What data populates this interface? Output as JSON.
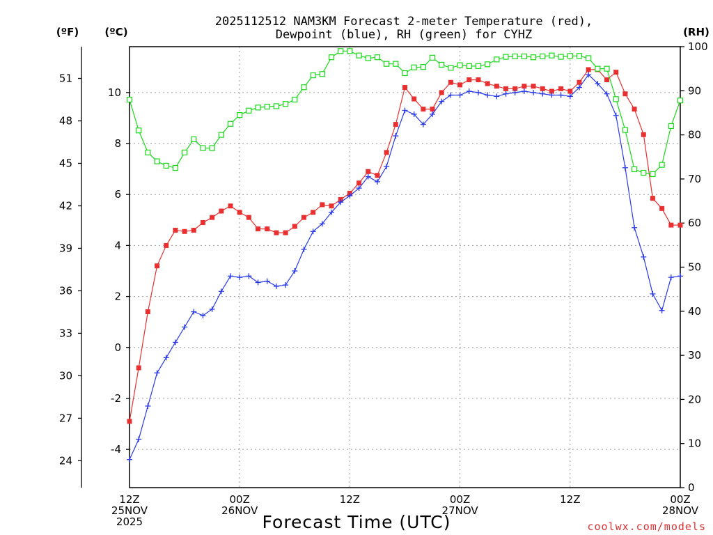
{
  "chart_data": {
    "type": "line",
    "title_line1": "2025112512 NAM3KM Forecast 2-meter Temperature (red),",
    "title_line2": "Dewpoint (blue), RH (green) for CYHZ",
    "xlabel": "Forecast Time (UTC)",
    "credit": "coolwx.com/models",
    "credit_color": "#e03030",
    "units": {
      "fahrenheit": "(ºF)",
      "celsius": "(ºC)",
      "rh": "(RH)"
    },
    "x_range": [
      0,
      60
    ],
    "x_ticks": [
      {
        "x": 0,
        "lines": [
          "12Z",
          "25NOV",
          "2025"
        ]
      },
      {
        "x": 12,
        "lines": [
          "00Z",
          "26NOV"
        ]
      },
      {
        "x": 24,
        "lines": [
          "12Z"
        ]
      },
      {
        "x": 36,
        "lines": [
          "00Z",
          "27NOV"
        ]
      },
      {
        "x": 48,
        "lines": [
          "12Z"
        ]
      },
      {
        "x": 60,
        "lines": [
          "00Z",
          "28NOV"
        ]
      }
    ],
    "celsius_range": [
      -5.5,
      11.8
    ],
    "celsius_ticks": [
      "-4",
      "-2",
      "0",
      "2",
      "4",
      "6",
      "8",
      "10"
    ],
    "fahrenheit_ticks": [
      "24",
      "27",
      "30",
      "33",
      "36",
      "39",
      "42",
      "45",
      "48",
      "51"
    ],
    "rh_range": [
      0,
      100
    ],
    "rh_ticks": [
      "0",
      "10",
      "20",
      "30",
      "40",
      "50",
      "60",
      "70",
      "80",
      "90",
      "100"
    ],
    "hours": [
      0,
      1,
      2,
      3,
      4,
      5,
      6,
      7,
      8,
      9,
      10,
      11,
      12,
      13,
      14,
      15,
      16,
      17,
      18,
      19,
      20,
      21,
      22,
      23,
      24,
      25,
      26,
      27,
      28,
      29,
      30,
      31,
      32,
      33,
      34,
      35,
      36,
      37,
      38,
      39,
      40,
      41,
      42,
      43,
      44,
      45,
      46,
      47,
      48,
      49,
      50,
      51,
      52,
      53,
      54,
      55,
      56,
      57,
      58,
      59,
      60
    ],
    "series": [
      {
        "name": "Temperature",
        "unit": "C",
        "color": "#e83030",
        "marker": "filled-square",
        "values": [
          -2.9,
          -0.8,
          1.4,
          3.2,
          4.0,
          4.6,
          4.55,
          4.6,
          4.9,
          5.1,
          5.35,
          5.55,
          5.3,
          5.1,
          4.65,
          4.65,
          4.5,
          4.5,
          4.75,
          5.1,
          5.3,
          5.6,
          5.55,
          5.8,
          6.05,
          6.45,
          6.9,
          6.75,
          7.65,
          8.75,
          10.2,
          9.75,
          9.35,
          9.35,
          10.0,
          10.4,
          10.3,
          10.5,
          10.5,
          10.35,
          10.25,
          10.15,
          10.15,
          10.25,
          10.25,
          10.15,
          10.05,
          10.15,
          10.05,
          10.4,
          10.9,
          10.9,
          10.5,
          10.8,
          9.95,
          9.35,
          8.35,
          5.85,
          5.45,
          4.8,
          4.8
        ]
      },
      {
        "name": "Dewpoint",
        "unit": "C",
        "color": "#2838e8",
        "marker": "plus",
        "values": [
          -4.4,
          -3.6,
          -2.3,
          -1.0,
          -0.4,
          0.2,
          0.8,
          1.4,
          1.25,
          1.5,
          2.2,
          2.8,
          2.75,
          2.8,
          2.55,
          2.6,
          2.4,
          2.45,
          3.0,
          3.85,
          4.55,
          4.85,
          5.3,
          5.7,
          5.95,
          6.25,
          6.7,
          6.5,
          7.1,
          8.3,
          9.3,
          9.15,
          8.75,
          9.15,
          9.65,
          9.9,
          9.9,
          10.05,
          10.0,
          9.9,
          9.85,
          9.95,
          10.0,
          10.05,
          10.0,
          9.95,
          9.9,
          9.9,
          9.85,
          10.2,
          10.7,
          10.35,
          9.95,
          9.1,
          7.05,
          4.7,
          3.55,
          2.1,
          1.45,
          2.75,
          2.8
        ]
      },
      {
        "name": "RH",
        "unit": "%",
        "color": "#18d818",
        "marker": "open-square",
        "values": [
          88,
          81,
          76,
          74,
          73,
          72.5,
          76,
          79,
          77,
          77,
          80,
          82.5,
          84.5,
          85.5,
          86.2,
          86.4,
          86.5,
          87,
          88,
          90.8,
          93.5,
          93.8,
          97.6,
          99,
          99,
          98,
          97.4,
          97.6,
          96.1,
          96.1,
          94,
          95.3,
          95.4,
          97.5,
          95.9,
          95.2,
          95.8,
          95.6,
          95.6,
          96,
          97.1,
          97.7,
          97.8,
          97.8,
          97.6,
          97.8,
          98,
          97.7,
          97.9,
          97.9,
          97.4,
          95,
          95,
          88.1,
          81.1,
          72.2,
          71.4,
          71.1,
          73.2,
          82,
          87.8
        ]
      }
    ]
  }
}
